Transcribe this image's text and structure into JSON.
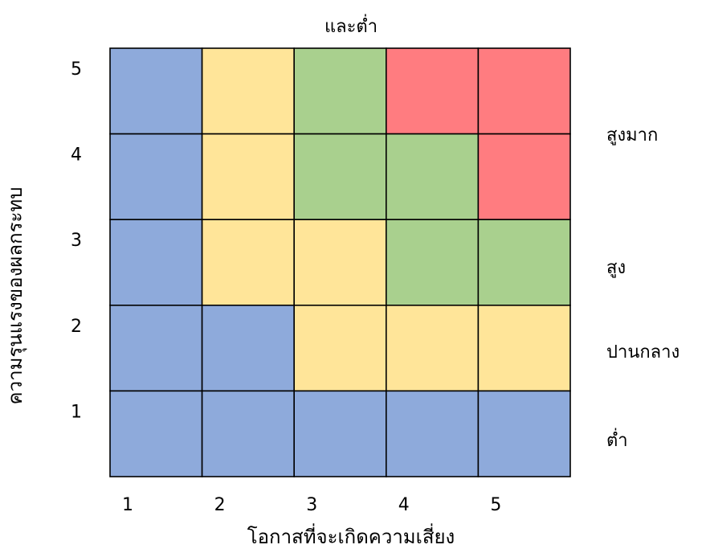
{
  "chart_data": {
    "type": "heatmap",
    "title": "และต่ำ",
    "xlabel": "โอกาสที่จะเกิดความเสี่ยง",
    "ylabel": "ความรุนแรงของผลกระทบ",
    "x_ticks": [
      "1",
      "2",
      "3",
      "4",
      "5"
    ],
    "y_ticks": [
      "1",
      "2",
      "3",
      "4",
      "5"
    ],
    "level_labels": [
      "สูงมาก",
      "สูง",
      "ปานกลาง",
      "ต่ำ"
    ],
    "colors": {
      "blue": "#8eaadb",
      "yellow": "#ffe599",
      "green": "#a9d08e",
      "red": "#ff7c80"
    },
    "grid_rows_top_to_bottom": [
      [
        "blue",
        "yellow",
        "green",
        "red",
        "red"
      ],
      [
        "blue",
        "yellow",
        "green",
        "green",
        "red"
      ],
      [
        "blue",
        "yellow",
        "yellow",
        "green",
        "green"
      ],
      [
        "blue",
        "blue",
        "yellow",
        "yellow",
        "yellow"
      ],
      [
        "blue",
        "blue",
        "blue",
        "blue",
        "blue"
      ]
    ]
  }
}
